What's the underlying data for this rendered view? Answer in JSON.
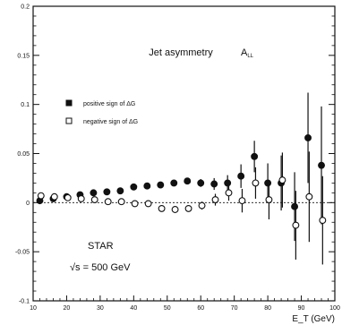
{
  "chart_data": {
    "type": "scatter",
    "title": "",
    "xlabel": "E_T (GeV)",
    "ylabel": "",
    "xlim": [
      10,
      100
    ],
    "ylim": [
      -0.1,
      0.2
    ],
    "x_ticks": [
      "10",
      "20",
      "30",
      "40",
      "50",
      "60",
      "70",
      "80",
      "90",
      "100"
    ],
    "y_ticks": [
      "-0.1",
      "-0.05",
      "0",
      "0.05",
      "0.1",
      "0.15",
      "0.2"
    ],
    "grid": false,
    "reference_line": {
      "y": 0,
      "style": "dashed"
    },
    "annotations": {
      "main": "Jet asymmetry",
      "symbol": "A",
      "symbol_sub": "LL",
      "experiment": "STAR",
      "energy": "√s = 500 GeV"
    },
    "legend": {
      "placement": "upper-left",
      "entries": [
        {
          "label": "positive sign of ΔG",
          "marker": "filled-square"
        },
        {
          "label": "negative sign of ΔG",
          "marker": "open-square"
        }
      ]
    },
    "series": [
      {
        "marker": "filled",
        "points": [
          {
            "x": 12,
            "y": 0.002,
            "err": 0.002
          },
          {
            "x": 16,
            "y": 0.004,
            "err": 0.002
          },
          {
            "x": 20,
            "y": 0.006,
            "err": 0.002
          },
          {
            "x": 24,
            "y": 0.008,
            "err": 0.002
          },
          {
            "x": 28,
            "y": 0.01,
            "err": 0.002
          },
          {
            "x": 32,
            "y": 0.011,
            "err": 0.002
          },
          {
            "x": 36,
            "y": 0.012,
            "err": 0.002
          },
          {
            "x": 40,
            "y": 0.016,
            "err": 0.002
          },
          {
            "x": 44,
            "y": 0.017,
            "err": 0.002
          },
          {
            "x": 48,
            "y": 0.018,
            "err": 0.002
          },
          {
            "x": 52,
            "y": 0.02,
            "err": 0.002
          },
          {
            "x": 56,
            "y": 0.022,
            "err": 0.003
          },
          {
            "x": 60,
            "y": 0.02,
            "err": 0.004
          },
          {
            "x": 64,
            "y": 0.019,
            "err": 0.006
          },
          {
            "x": 68,
            "y": 0.02,
            "err": 0.008
          },
          {
            "x": 72,
            "y": 0.027,
            "err": 0.012
          },
          {
            "x": 76,
            "y": 0.047,
            "err": 0.016
          },
          {
            "x": 80,
            "y": 0.02,
            "err": 0.02
          },
          {
            "x": 84,
            "y": 0.02,
            "err": 0.028
          },
          {
            "x": 88,
            "y": -0.004,
            "err": 0.035
          },
          {
            "x": 92,
            "y": 0.066,
            "err": 0.046
          },
          {
            "x": 96,
            "y": 0.038,
            "err": 0.06
          }
        ]
      },
      {
        "marker": "open",
        "points": [
          {
            "x": 12,
            "y": 0.007,
            "err": 0.002
          },
          {
            "x": 16,
            "y": 0.006,
            "err": 0.002
          },
          {
            "x": 20,
            "y": 0.005,
            "err": 0.002
          },
          {
            "x": 24,
            "y": 0.004,
            "err": 0.002
          },
          {
            "x": 28,
            "y": 0.003,
            "err": 0.002
          },
          {
            "x": 32,
            "y": 0.001,
            "err": 0.002
          },
          {
            "x": 36,
            "y": 0.001,
            "err": 0.002
          },
          {
            "x": 40,
            "y": -0.001,
            "err": 0.002
          },
          {
            "x": 44,
            "y": -0.001,
            "err": 0.002
          },
          {
            "x": 48,
            "y": -0.006,
            "err": 0.002
          },
          {
            "x": 52,
            "y": -0.007,
            "err": 0.002
          },
          {
            "x": 56,
            "y": -0.006,
            "err": 0.003
          },
          {
            "x": 60,
            "y": -0.003,
            "err": 0.004
          },
          {
            "x": 64,
            "y": 0.003,
            "err": 0.006
          },
          {
            "x": 68,
            "y": 0.01,
            "err": 0.008
          },
          {
            "x": 72,
            "y": 0.002,
            "err": 0.012
          },
          {
            "x": 76,
            "y": 0.02,
            "err": 0.016
          },
          {
            "x": 80,
            "y": 0.003,
            "err": 0.02
          },
          {
            "x": 84,
            "y": 0.023,
            "err": 0.028
          },
          {
            "x": 88,
            "y": -0.023,
            "err": 0.035
          },
          {
            "x": 92,
            "y": 0.006,
            "err": 0.046
          },
          {
            "x": 96,
            "y": -0.018,
            "err": 0.045
          }
        ]
      }
    ]
  }
}
